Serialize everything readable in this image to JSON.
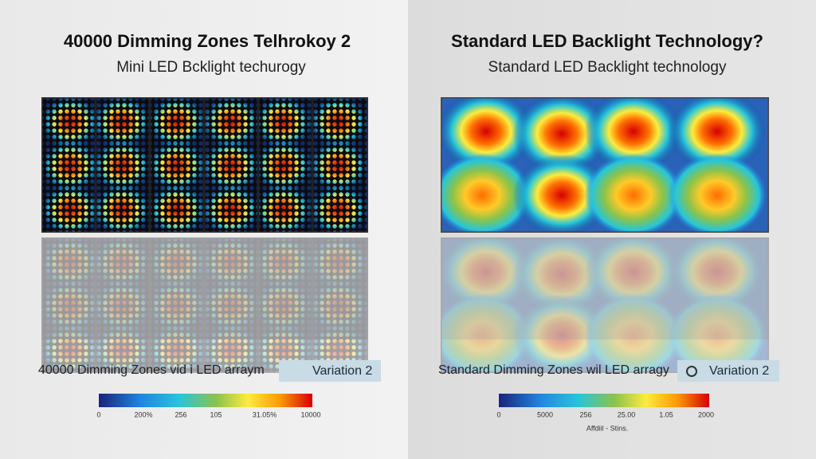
{
  "left": {
    "title": "40000 Dimming Zones Telhrokoy 2",
    "subtitle": "Mini LED Bcklight techurogy",
    "caption": "40000 Dimming Zones vid i LED arraym",
    "button": "Variation 2",
    "scale_labels": [
      "0",
      "200%",
      "256",
      "105",
      "31.05%",
      "10000"
    ]
  },
  "right": {
    "title": "Standard LED Backlight Technology?",
    "subtitle": "Standard LED Backlight technology",
    "caption": "Standard Dimming Zones wil LED arragy",
    "button": "Variation 2",
    "scale_labels": [
      "0",
      "5000",
      "256",
      "25.00",
      "1.05",
      "2000"
    ],
    "footnote": "Affdiil - Stins."
  }
}
